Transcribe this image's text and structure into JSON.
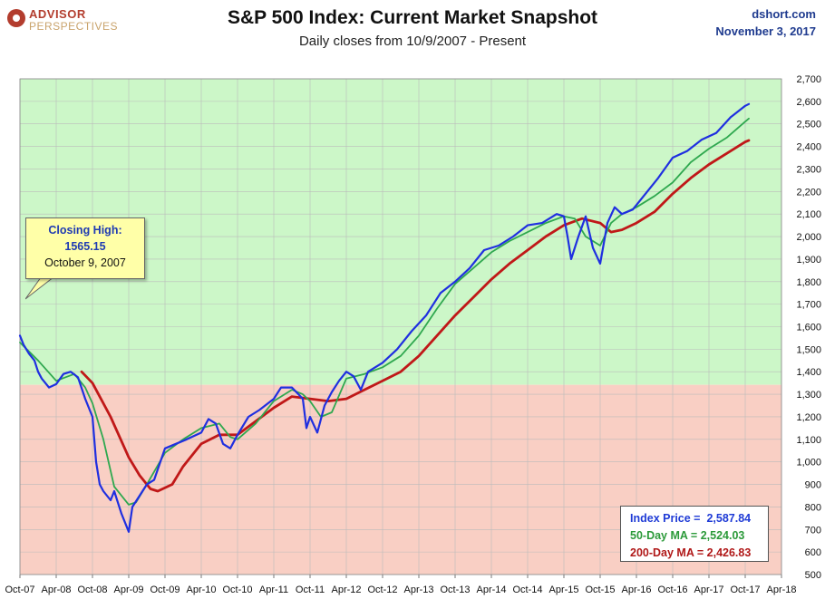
{
  "header": {
    "logo_line1": "ADVISOR",
    "logo_line2": "PERSPECTIVES",
    "title": "S&P 500 Index: Current Market Snapshot",
    "subtitle": "Daily closes from 10/9/2007 - Present",
    "site": "dshort.com",
    "date": "November 3, 2017"
  },
  "callout": {
    "line1": "Closing High:",
    "line2": "1565.15",
    "line3": "October 9, 2007"
  },
  "stats": {
    "price_label": "Index Price =",
    "price_value": "2,587.84",
    "ma50_label": "50-Day MA =",
    "ma50_value": "2,524.03",
    "ma200_label": "200-Day MA =",
    "ma200_value": "2,426.83"
  },
  "colors": {
    "above_zone": "#ccf7c8",
    "below_zone": "#f9cfc4",
    "price": "#1f2fe0",
    "ma50": "#2fa84f",
    "ma200": "#c01818"
  },
  "chart_data": {
    "type": "line",
    "title": "S&P 500 Index: Current Market Snapshot",
    "subtitle": "Daily closes from 10/9/2007 - Present",
    "x_tick_labels": [
      "Oct-07",
      "Apr-08",
      "Oct-08",
      "Apr-09",
      "Oct-09",
      "Apr-10",
      "Oct-10",
      "Apr-11",
      "Oct-11",
      "Apr-12",
      "Oct-12",
      "Apr-13",
      "Oct-13",
      "Apr-14",
      "Oct-14",
      "Apr-15",
      "Oct-15",
      "Apr-16",
      "Oct-16",
      "Apr-17",
      "Oct-17",
      "Apr-18"
    ],
    "y_tick_labels": [
      "500",
      "600",
      "700",
      "800",
      "900",
      "1,000",
      "1,100",
      "1,200",
      "1,300",
      "1,400",
      "1,500",
      "1,600",
      "1,700",
      "1,800",
      "1,900",
      "2,000",
      "2,100",
      "2,200",
      "2,300",
      "2,400",
      "2,500",
      "2,600",
      "2,700"
    ],
    "ylim": [
      500,
      2700
    ],
    "xlim": [
      0,
      21
    ],
    "zone_threshold": 1342,
    "grid": true,
    "y_axis_side": "right",
    "x_unit": "half-years since Oct-07",
    "series": [
      {
        "name": "Index Price",
        "x": [
          0,
          0.1,
          0.25,
          0.4,
          0.5,
          0.6,
          0.8,
          1,
          1.2,
          1.4,
          1.6,
          1.8,
          2,
          2.1,
          2.2,
          2.3,
          2.5,
          2.6,
          2.8,
          3,
          3.1,
          3.3,
          3.5,
          3.7,
          4,
          4.3,
          4.6,
          5,
          5.2,
          5.4,
          5.6,
          5.8,
          6,
          6.3,
          6.6,
          7,
          7.2,
          7.5,
          7.8,
          7.9,
          8,
          8.2,
          8.4,
          8.6,
          8.8,
          9,
          9.2,
          9.4,
          9.6,
          10,
          10.4,
          10.8,
          11.2,
          11.6,
          12,
          12.4,
          12.8,
          13.2,
          13.6,
          14,
          14.4,
          14.8,
          15,
          15.1,
          15.2,
          15.4,
          15.6,
          15.8,
          16,
          16.2,
          16.4,
          16.6,
          16.9,
          17.2,
          17.6,
          18,
          18.4,
          18.8,
          19.2,
          19.6,
          20,
          20.1
        ],
        "values": [
          1560,
          1520,
          1480,
          1450,
          1400,
          1370,
          1330,
          1345,
          1390,
          1400,
          1375,
          1280,
          1200,
          1000,
          900,
          870,
          830,
          870,
          770,
          690,
          800,
          850,
          900,
          920,
          1060,
          1080,
          1100,
          1130,
          1190,
          1170,
          1080,
          1060,
          1120,
          1200,
          1230,
          1280,
          1330,
          1330,
          1280,
          1150,
          1200,
          1130,
          1250,
          1310,
          1360,
          1400,
          1380,
          1320,
          1400,
          1440,
          1500,
          1580,
          1650,
          1750,
          1800,
          1860,
          1940,
          1960,
          2000,
          2050,
          2060,
          2100,
          2090,
          2000,
          1900,
          2000,
          2090,
          1950,
          1880,
          2060,
          2130,
          2100,
          2120,
          2180,
          2260,
          2350,
          2380,
          2430,
          2460,
          2530,
          2580,
          2588
        ]
      },
      {
        "name": "50-Day MA",
        "x": [
          0,
          0.5,
          1,
          1.5,
          1.8,
          2,
          2.3,
          2.6,
          3,
          3.2,
          3.5,
          4,
          4.5,
          5,
          5.5,
          5.8,
          6,
          6.5,
          7,
          7.5,
          7.8,
          8,
          8.3,
          8.6,
          9,
          9.5,
          10,
          10.5,
          11,
          11.5,
          12,
          12.5,
          13,
          13.5,
          14,
          14.5,
          15,
          15.3,
          15.6,
          16,
          16.3,
          16.6,
          17,
          17.5,
          18,
          18.5,
          19,
          19.5,
          20,
          20.1
        ],
        "values": [
          1530,
          1450,
          1360,
          1390,
          1330,
          1260,
          1100,
          890,
          810,
          820,
          900,
          1040,
          1100,
          1150,
          1170,
          1110,
          1100,
          1170,
          1270,
          1320,
          1300,
          1270,
          1200,
          1220,
          1370,
          1390,
          1420,
          1470,
          1560,
          1680,
          1790,
          1860,
          1930,
          1980,
          2020,
          2060,
          2090,
          2080,
          2000,
          1960,
          2060,
          2100,
          2130,
          2180,
          2240,
          2330,
          2390,
          2440,
          2510,
          2524
        ]
      },
      {
        "name": "200-Day MA",
        "x": [
          1.7,
          2,
          2.5,
          3,
          3.3,
          3.6,
          3.8,
          4.2,
          4.5,
          5,
          5.5,
          6,
          6.5,
          7,
          7.5,
          8,
          8.5,
          9,
          9.5,
          10,
          10.5,
          11,
          11.5,
          12,
          12.5,
          13,
          13.5,
          14,
          14.5,
          15,
          15.5,
          16,
          16.3,
          16.6,
          17,
          17.5,
          18,
          18.5,
          19,
          19.5,
          20,
          20.1
        ],
        "values": [
          1400,
          1350,
          1200,
          1020,
          940,
          880,
          870,
          900,
          980,
          1080,
          1120,
          1120,
          1180,
          1240,
          1290,
          1280,
          1270,
          1280,
          1320,
          1360,
          1400,
          1470,
          1560,
          1650,
          1730,
          1810,
          1880,
          1940,
          2000,
          2050,
          2080,
          2060,
          2020,
          2030,
          2060,
          2110,
          2190,
          2260,
          2320,
          2370,
          2420,
          2427
        ]
      }
    ]
  }
}
